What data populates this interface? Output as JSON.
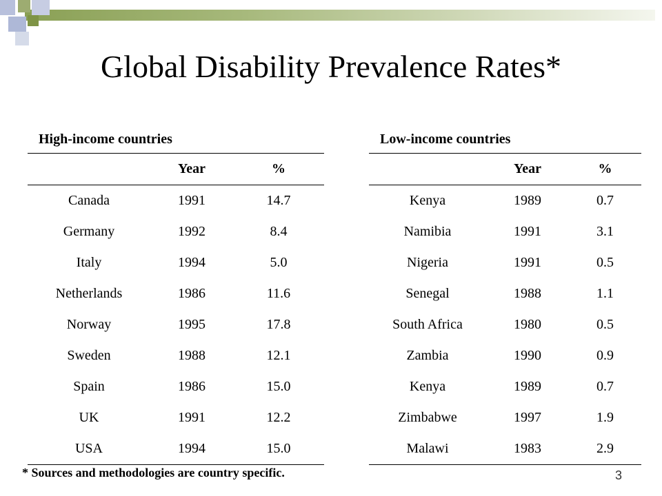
{
  "title": "Global Disability Prevalence Rates*",
  "high_income": {
    "caption": "High-income countries",
    "headers": [
      "",
      "Year",
      "%"
    ],
    "rows": [
      [
        "Canada",
        "1991",
        "14.7"
      ],
      [
        "Germany",
        "1992",
        "8.4"
      ],
      [
        "Italy",
        "1994",
        "5.0"
      ],
      [
        "Netherlands",
        "1986",
        "11.6"
      ],
      [
        "Norway",
        "1995",
        "17.8"
      ],
      [
        "Sweden",
        "1988",
        "12.1"
      ],
      [
        "Spain",
        "1986",
        "15.0"
      ],
      [
        "UK",
        "1991",
        "12.2"
      ],
      [
        "USA",
        "1994",
        "15.0"
      ]
    ]
  },
  "low_income": {
    "caption": "Low-income countries",
    "headers": [
      "",
      "Year",
      "%"
    ],
    "rows": [
      [
        "Kenya",
        "1989",
        "0.7"
      ],
      [
        "Namibia",
        "1991",
        "3.1"
      ],
      [
        "Nigeria",
        "1991",
        "0.5"
      ],
      [
        "Senegal",
        "1988",
        "1.1"
      ],
      [
        "South Africa",
        "1980",
        "0.5"
      ],
      [
        "Zambia",
        "1990",
        "0.9"
      ],
      [
        "Kenya",
        "1989",
        "0.7"
      ],
      [
        "Zimbabwe",
        "1997",
        "1.9"
      ],
      [
        "Malawi",
        "1983",
        "2.9"
      ]
    ]
  },
  "footnote": "* Sources and methodologies are country specific.",
  "page_number": "3",
  "colors": {
    "header_bar": "#8aa055",
    "accent_blue": "#b8c0dc"
  }
}
